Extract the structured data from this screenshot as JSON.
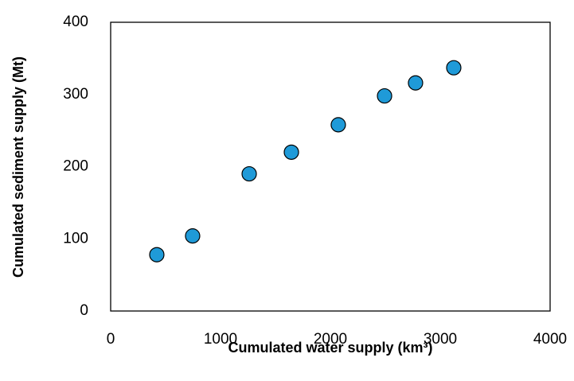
{
  "chart_data": {
    "type": "scatter",
    "x_label": "Cumulated water supply (km³)",
    "y_label": "Cumulated sediment supply (Mt)",
    "series": [
      {
        "color": "#1f9ad8",
        "x": [
          420,
          746,
          1261,
          1645,
          2072,
          2493,
          2775,
          3123
        ],
        "values": [
          78,
          104,
          190,
          220,
          258,
          298,
          316,
          337
        ]
      }
    ],
    "xlim": [
      0,
      4000
    ],
    "xticks": [
      0,
      1000,
      2000,
      3000,
      4000
    ],
    "ylim": [
      0,
      400
    ],
    "yticks": [
      0,
      100,
      200,
      300,
      400
    ],
    "grid": false
  }
}
